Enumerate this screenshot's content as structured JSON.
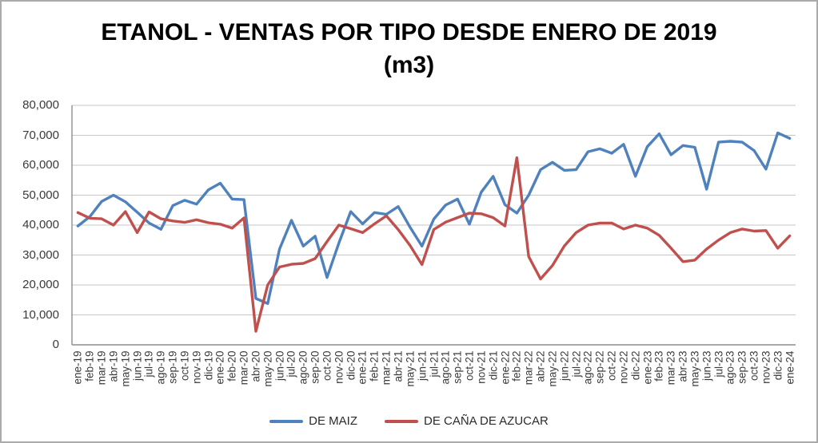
{
  "title_line1": "ETANOL - VENTAS POR TIPO DESDE ENERO DE 2019",
  "title_line2": "(m3)",
  "colors": {
    "maiz": "#4F81BD",
    "cana": "#C0504D",
    "gridline": "#c6c6c6",
    "axis": "#8e8e8e",
    "text": "#3a3a3a"
  },
  "y_ticks": [
    "0",
    "10,000",
    "20,000",
    "30,000",
    "40,000",
    "50,000",
    "60,000",
    "70,000",
    "80,000"
  ],
  "chart_data": {
    "type": "line",
    "title": "ETANOL - VENTAS POR TIPO DESDE ENERO DE 2019 (m3)",
    "xlabel": "",
    "ylabel": "",
    "ylim": [
      0,
      80000
    ],
    "y_step": 10000,
    "grid": "horizontal",
    "legend_position": "bottom",
    "categories": [
      "ene-19",
      "feb-19",
      "mar-19",
      "abr-19",
      "may-19",
      "jun-19",
      "jul-19",
      "ago-19",
      "sep-19",
      "oct-19",
      "nov-19",
      "dic-19",
      "ene-20",
      "feb-20",
      "mar-20",
      "abr-20",
      "may-20",
      "jun-20",
      "jul-20",
      "ago-20",
      "sep-20",
      "oct-20",
      "nov-20",
      "dic-20",
      "ene-21",
      "feb-21",
      "mar-21",
      "abr-21",
      "may-21",
      "jun-21",
      "jul-21",
      "ago-21",
      "sep-21",
      "oct-21",
      "nov-21",
      "dic-21",
      "ene-22",
      "feb-22",
      "mar-22",
      "abr-22",
      "may-22",
      "jun-22",
      "jul-22",
      "ago-22",
      "sep-22",
      "oct-22",
      "nov-22",
      "dic-22",
      "ene-23",
      "feb-23",
      "mar-23",
      "abr-23",
      "may-23",
      "jun-23",
      "jul-23",
      "ago-23",
      "sep-23",
      "oct-23",
      "nov-23",
      "dic-23",
      "ene-24"
    ],
    "series": [
      {
        "name": "DE MAIZ",
        "color": "#4F81BD",
        "values": [
          39700,
          42800,
          47900,
          50000,
          47800,
          44300,
          40700,
          38600,
          46500,
          48300,
          47000,
          51800,
          54000,
          48700,
          48500,
          15500,
          13800,
          32000,
          41600,
          33000,
          36300,
          22500,
          34000,
          44500,
          40400,
          44200,
          43600,
          46200,
          39300,
          33000,
          42000,
          46700,
          48700,
          40300,
          51000,
          56300,
          46800,
          44000,
          50000,
          58500,
          61000,
          58300,
          58500,
          64500,
          65500,
          64000,
          67000,
          56300,
          66200,
          70500,
          63500,
          66600,
          66000,
          52000,
          67700,
          68000,
          67700,
          64900,
          58700,
          70800,
          69000
        ]
      },
      {
        "name": "DE CAÑA DE AZUCAR",
        "color": "#C0504D",
        "values": [
          44200,
          42300,
          42100,
          40000,
          44500,
          37500,
          44400,
          42100,
          41400,
          40900,
          41800,
          40800,
          40300,
          39000,
          42400,
          4500,
          20000,
          26000,
          26900,
          27200,
          28800,
          34500,
          40000,
          38800,
          37500,
          40400,
          43100,
          38500,
          33200,
          26800,
          38500,
          41000,
          42500,
          44000,
          43800,
          42500,
          39700,
          62500,
          29500,
          22000,
          26500,
          33000,
          37500,
          40000,
          40700,
          40700,
          38700,
          40000,
          39000,
          36600,
          32300,
          27800,
          28300,
          32000,
          35000,
          37500,
          38700,
          38000,
          38200,
          32300,
          36400
        ]
      }
    ]
  }
}
